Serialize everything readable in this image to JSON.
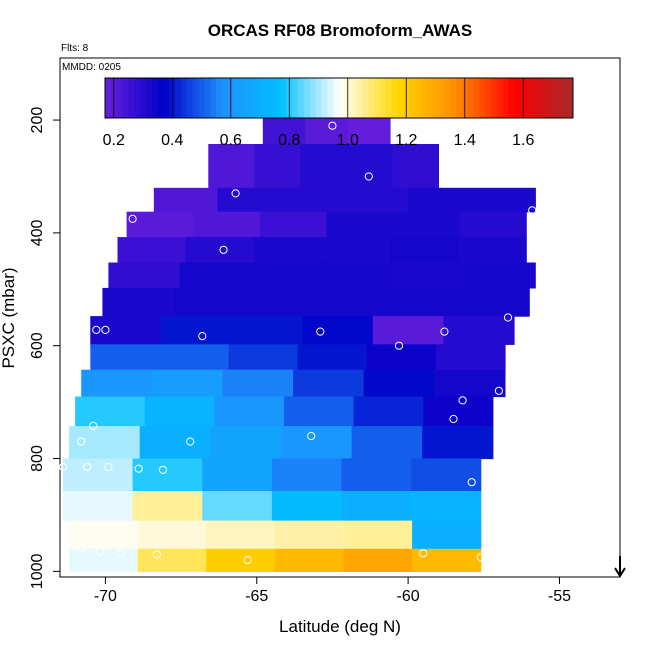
{
  "chart_data": {
    "type": "heatmap",
    "title": "ORCAS RF08 Bromoform_AWAS",
    "notes": {
      "flights": "Flts: 8",
      "date": "MMDD: 0205"
    },
    "xlabel": "Latitude (deg N)",
    "ylabel": "PSXC (mbar)",
    "xlim": [
      -71.5,
      -53
    ],
    "ylim": [
      1010,
      90
    ],
    "y_reversed": true,
    "xticks": [
      -70,
      -65,
      -60,
      -55
    ],
    "xtick_labels": [
      "-70",
      "-65",
      "-60",
      "-55"
    ],
    "yticks": [
      200,
      400,
      600,
      800,
      1000
    ],
    "ytick_labels": [
      "200",
      "400",
      "600",
      "800",
      "1000"
    ],
    "colorbar": {
      "range": [
        0.17,
        1.77
      ],
      "ticks": [
        0.2,
        0.4,
        0.6,
        0.8,
        1.0,
        1.2,
        1.4,
        1.6
      ],
      "tick_labels": [
        "0.2",
        "0.4",
        "0.6",
        "0.8",
        "1.0",
        "1.2",
        "1.4",
        "1.6"
      ],
      "colors": [
        "#6a1fdd",
        "#0000c8",
        "#1e90ff",
        "#00bfff",
        "#ffffff",
        "#ffd700",
        "#ff8c00",
        "#ff0000",
        "#a52a2a"
      ]
    },
    "rows": [
      {
        "p": 175,
        "x0": -62.6,
        "x1": -62.4,
        "values": [
          0.2
        ]
      },
      {
        "p": 200,
        "x0": -64.8,
        "x1": -60.6,
        "values": [
          0.25,
          0.2,
          0.18
        ]
      },
      {
        "p": 225,
        "x0": -64.8,
        "x1": -60.6,
        "values": [
          0.25,
          0.2,
          0.18
        ]
      },
      {
        "p": 260,
        "x0": -66.6,
        "x1": -59.0,
        "values": [
          0.22,
          0.27,
          0.3,
          0.3,
          0.28
        ]
      },
      {
        "p": 300,
        "x0": -66.6,
        "x1": -59.0,
        "values": [
          0.22,
          0.27,
          0.3,
          0.3,
          0.28
        ]
      },
      {
        "p": 340,
        "x0": -68.4,
        "x1": -55.8,
        "values": [
          0.22,
          0.3,
          0.3,
          0.3,
          0.32,
          0.32
        ]
      },
      {
        "p": 385,
        "x0": -69.3,
        "x1": -56.1,
        "values": [
          0.2,
          0.22,
          0.26,
          0.32,
          0.32,
          0.3
        ]
      },
      {
        "p": 430,
        "x0": -69.6,
        "x1": -56.1,
        "values": [
          0.26,
          0.3,
          0.32,
          0.32,
          0.33,
          0.32
        ]
      },
      {
        "p": 475,
        "x0": -69.9,
        "x1": -55.8,
        "values": [
          0.28,
          0.33,
          0.33,
          0.33,
          0.32,
          0.33
        ]
      },
      {
        "p": 520,
        "x0": -70.1,
        "x1": -56.0,
        "values": [
          0.32,
          0.33,
          0.33,
          0.33,
          0.33,
          0.33
        ]
      },
      {
        "p": 575,
        "x0": -70.5,
        "x1": -56.5,
        "values": [
          0.32,
          0.4,
          0.4,
          0.38,
          0.2,
          0.3
        ]
      },
      {
        "p": 620,
        "x0": -70.5,
        "x1": -56.8,
        "values": [
          0.5,
          0.5,
          0.45,
          0.4,
          0.35,
          0.3
        ]
      },
      {
        "p": 665,
        "x0": -70.8,
        "x1": -56.8,
        "values": [
          0.6,
          0.62,
          0.55,
          0.45,
          0.38,
          0.33
        ]
      },
      {
        "p": 715,
        "x0": -71.0,
        "x1": -57.2,
        "values": [
          0.8,
          0.72,
          0.6,
          0.5,
          0.42,
          0.35
        ]
      },
      {
        "p": 770,
        "x0": -71.2,
        "x1": -57.2,
        "values": [
          0.9,
          0.7,
          0.65,
          0.6,
          0.5,
          0.4
        ]
      },
      {
        "p": 830,
        "x0": -71.4,
        "x1": -57.6,
        "values": [
          0.92,
          0.8,
          0.65,
          0.55,
          0.5,
          0.48
        ]
      },
      {
        "p": 885,
        "x0": -71.4,
        "x1": -57.6,
        "values": [
          0.95,
          1.05,
          0.85,
          0.75,
          0.7,
          0.72
        ]
      },
      {
        "p": 935,
        "x0": -71.2,
        "x1": -57.6,
        "values": [
          0.98,
          1.0,
          1.02,
          1.04,
          1.05,
          0.7
        ]
      },
      {
        "p": 985,
        "x0": -71.2,
        "x1": -57.6,
        "values": [
          0.95,
          1.1,
          1.2,
          1.25,
          1.3,
          1.25
        ]
      }
    ],
    "samples": [
      {
        "x": -62.5,
        "y": 210
      },
      {
        "x": -61.3,
        "y": 300
      },
      {
        "x": -65.7,
        "y": 330
      },
      {
        "x": -55.9,
        "y": 360
      },
      {
        "x": -69.1,
        "y": 375
      },
      {
        "x": -66.1,
        "y": 430
      },
      {
        "x": -56.7,
        "y": 550
      },
      {
        "x": -70.3,
        "y": 572
      },
      {
        "x": -70.0,
        "y": 572
      },
      {
        "x": -66.8,
        "y": 583
      },
      {
        "x": -62.9,
        "y": 575
      },
      {
        "x": -58.8,
        "y": 575
      },
      {
        "x": -60.3,
        "y": 600
      },
      {
        "x": -57.0,
        "y": 680
      },
      {
        "x": -58.2,
        "y": 697
      },
      {
        "x": -58.5,
        "y": 730
      },
      {
        "x": -70.4,
        "y": 742
      },
      {
        "x": -63.2,
        "y": 760
      },
      {
        "x": -70.8,
        "y": 770
      },
      {
        "x": -67.2,
        "y": 770
      },
      {
        "x": -71.4,
        "y": 815
      },
      {
        "x": -70.6,
        "y": 815
      },
      {
        "x": -69.9,
        "y": 815
      },
      {
        "x": -68.9,
        "y": 818
      },
      {
        "x": -68.1,
        "y": 820
      },
      {
        "x": -57.4,
        "y": 820
      },
      {
        "x": -57.9,
        "y": 842
      },
      {
        "x": -70.2,
        "y": 965
      },
      {
        "x": -69.5,
        "y": 968
      },
      {
        "x": -68.3,
        "y": 970
      },
      {
        "x": -65.3,
        "y": 980
      },
      {
        "x": -59.5,
        "y": 968
      },
      {
        "x": -57.6,
        "y": 975
      },
      {
        "x": -70.8,
        "y": 958
      }
    ],
    "arrow": {
      "x": -53.0,
      "direction": "down"
    }
  }
}
